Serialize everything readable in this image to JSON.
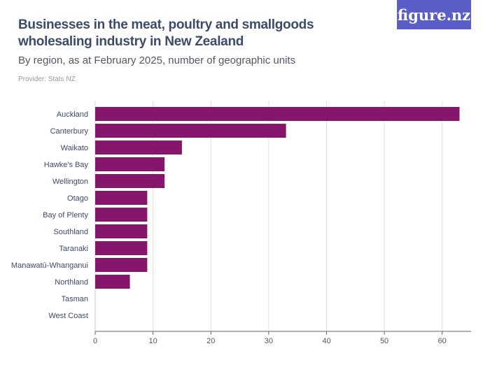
{
  "header": {
    "title": "Businesses in the meat, poultry and smallgoods wholesaling industry in New Zealand",
    "subtitle": "By region, as at February 2025, number of geographic units",
    "provider": "Provider: Stats NZ",
    "logo": "figure.nz"
  },
  "colors": {
    "bar": "#86166c",
    "grid": "#dddddd",
    "axis": "#666666"
  },
  "chart_data": {
    "type": "bar",
    "orientation": "horizontal",
    "title": "Businesses in the meat, poultry and smallgoods wholesaling industry in New Zealand",
    "categories": [
      "Auckland",
      "Canterbury",
      "Waikato",
      "Hawke's Bay",
      "Wellington",
      "Otago",
      "Bay of Plenty",
      "Southland",
      "Taranaki",
      "Manawatū-Whanganui",
      "Northland",
      "Tasman",
      "West Coast"
    ],
    "values": [
      63,
      33,
      15,
      12,
      12,
      9,
      9,
      9,
      9,
      9,
      6,
      0,
      0
    ],
    "xlim": [
      0,
      65
    ],
    "xticks": [
      0,
      10,
      20,
      30,
      40,
      50,
      60
    ],
    "grid": true,
    "xlabel": "",
    "ylabel": ""
  }
}
